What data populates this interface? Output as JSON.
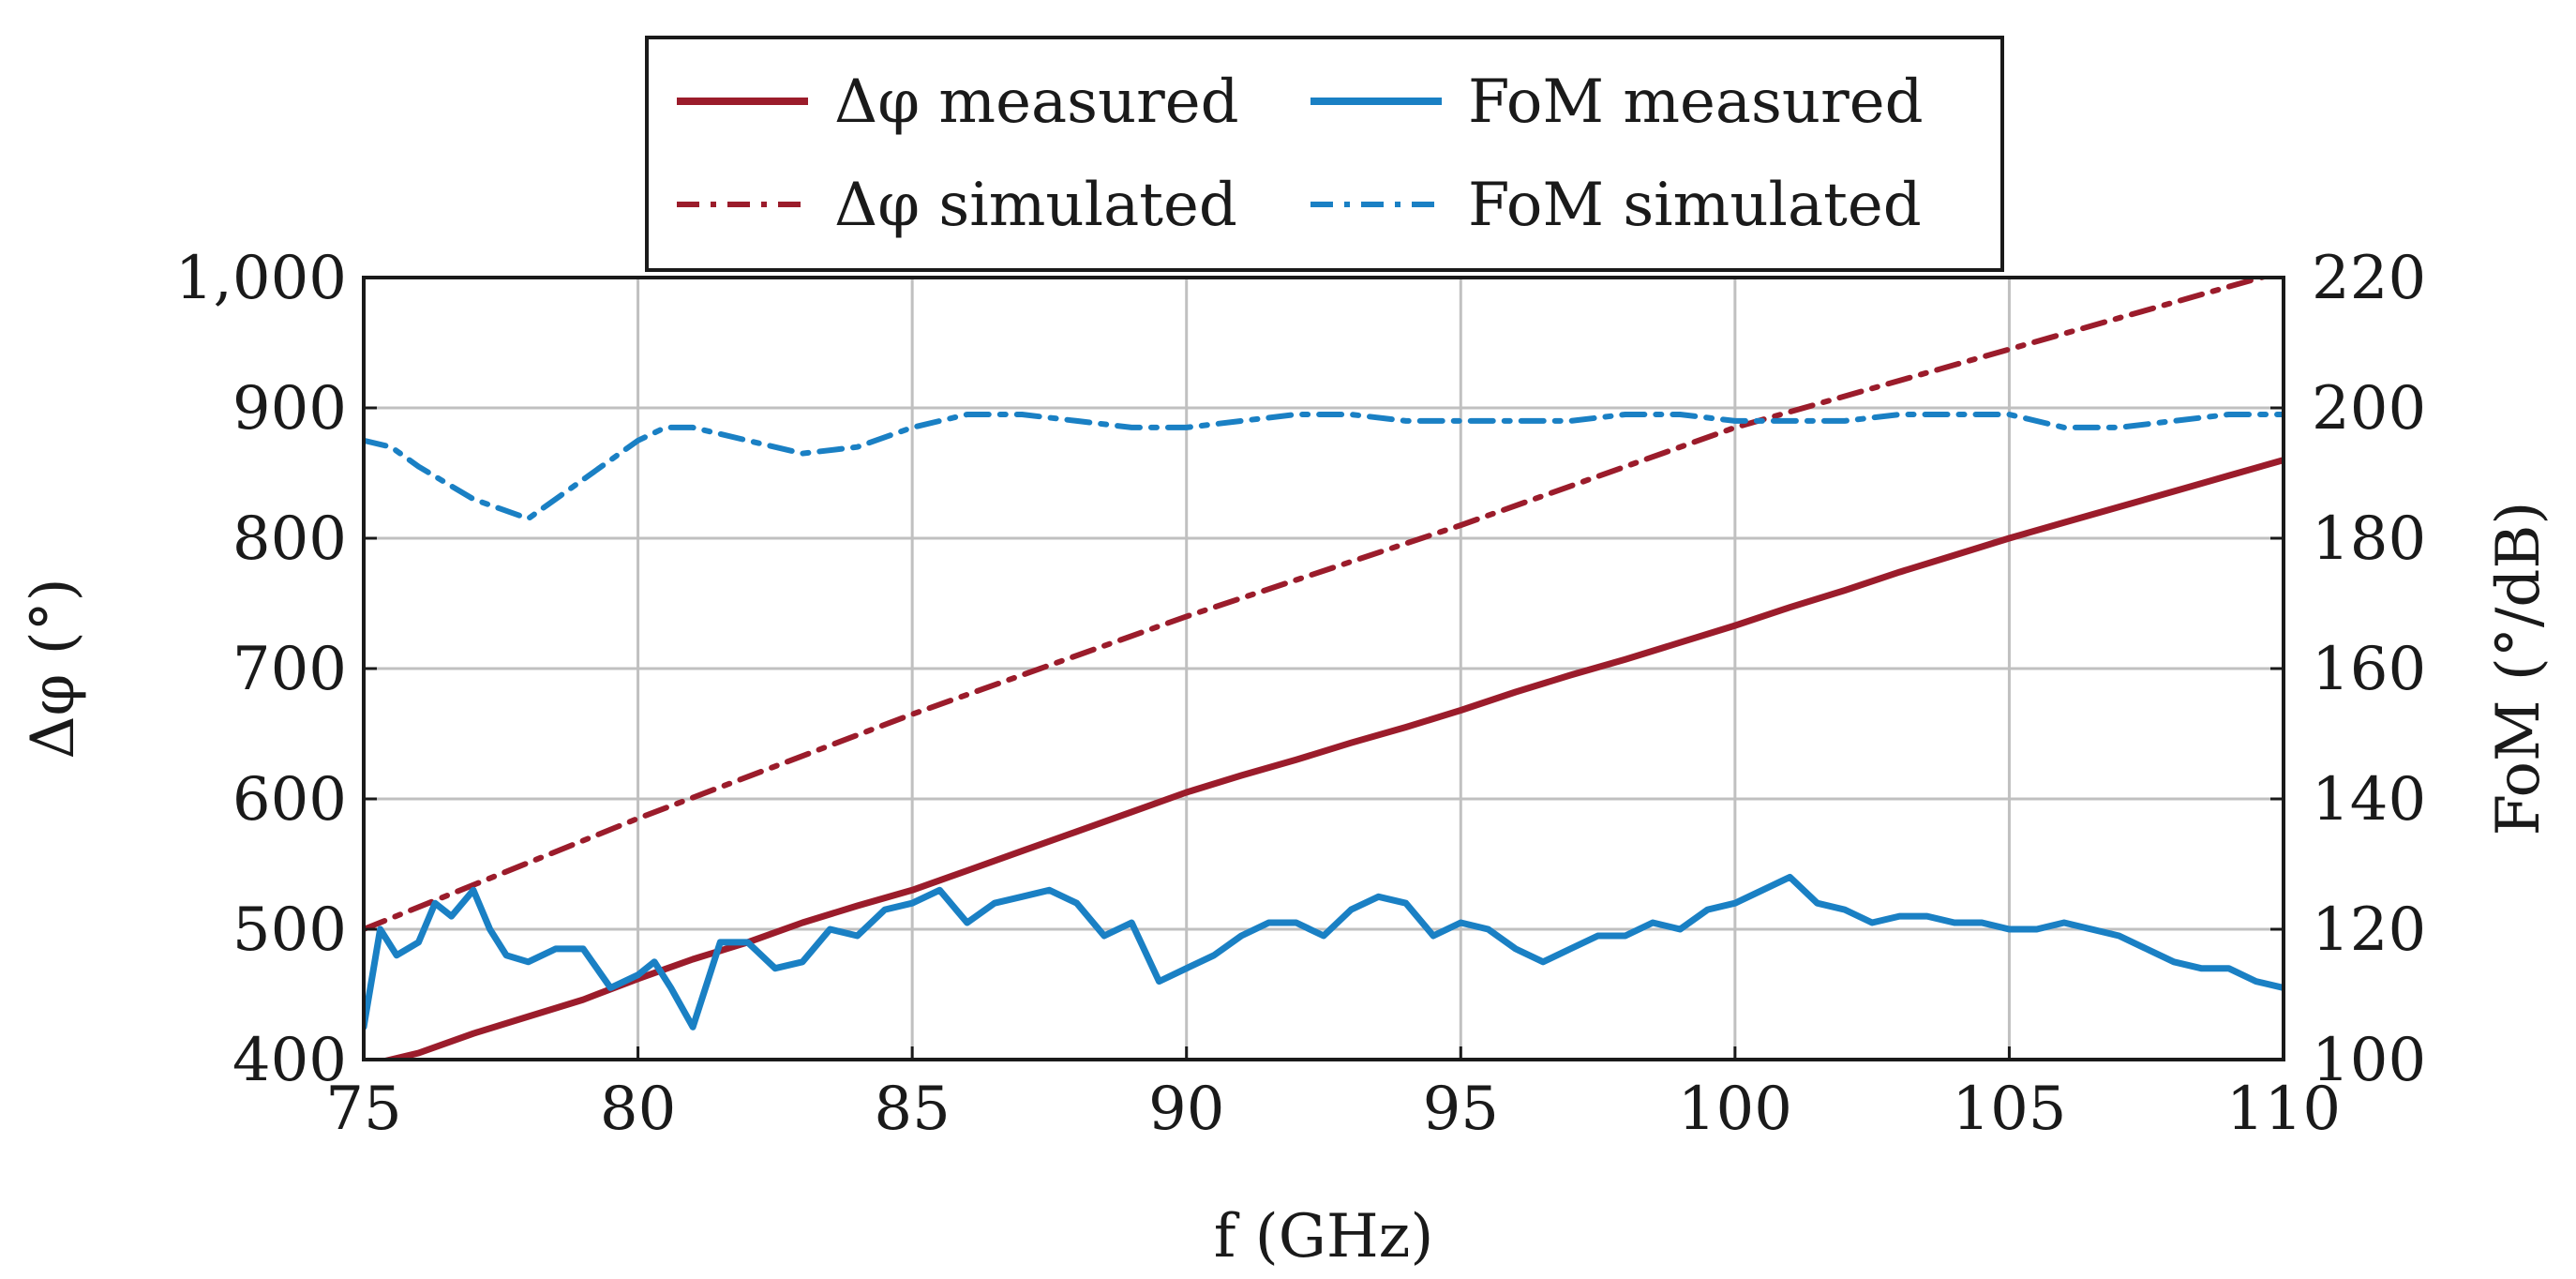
{
  "chart_data": {
    "type": "line",
    "xlabel": "f (GHz)",
    "ylabel_left": "Δφ (°)",
    "ylabel_right": "FoM (°/dB)",
    "xlim": [
      75,
      110
    ],
    "ylim_left": [
      400,
      1000
    ],
    "ylim_right": [
      100,
      220
    ],
    "grid": true,
    "legend_position": "top-center",
    "x_ticks": [
      75,
      80,
      85,
      90,
      95,
      100,
      105,
      110
    ],
    "x_tick_labels": [
      "75",
      "80",
      "85",
      "90",
      "95",
      "100",
      "105",
      "110"
    ],
    "y_left_ticks": [
      400,
      500,
      600,
      700,
      800,
      900,
      1000
    ],
    "y_left_tick_labels": [
      "400",
      "500",
      "600",
      "700",
      "800",
      "900",
      "1,000"
    ],
    "y_right_ticks": [
      100,
      120,
      140,
      160,
      180,
      200,
      220
    ],
    "y_right_tick_labels": [
      "100",
      "120",
      "140",
      "160",
      "180",
      "200",
      "220"
    ],
    "series": [
      {
        "name": "Δφ measured",
        "axis": "left",
        "color": "#9b1c2b",
        "style": "solid",
        "x": [
          75,
          76,
          77,
          78,
          79,
          80,
          81,
          82,
          83,
          84,
          85,
          86,
          87,
          88,
          89,
          90,
          91,
          92,
          93,
          94,
          95,
          96,
          97,
          98,
          99,
          100,
          101,
          102,
          103,
          104,
          105,
          106,
          107,
          108,
          109,
          110
        ],
        "values": [
          395,
          405,
          420,
          433,
          446,
          462,
          477,
          490,
          505,
          518,
          530,
          545,
          560,
          575,
          590,
          605,
          618,
          630,
          643,
          655,
          668,
          682,
          695,
          707,
          720,
          733,
          747,
          760,
          774,
          787,
          800,
          812,
          824,
          836,
          848,
          860
        ]
      },
      {
        "name": "Δφ simulated",
        "axis": "left",
        "color": "#9b1c2b",
        "style": "dashdot",
        "x": [
          75,
          80,
          85,
          90,
          95,
          100,
          105,
          110
        ],
        "values": [
          500,
          585,
          665,
          740,
          810,
          885,
          945,
          1005
        ]
      },
      {
        "name": "FoM measured",
        "axis": "right",
        "color": "#1a80c4",
        "style": "solid",
        "x": [
          75,
          75.3,
          75.6,
          76,
          76.3,
          76.6,
          77,
          77.3,
          77.6,
          78,
          78.5,
          79,
          79.5,
          80,
          80.3,
          80.6,
          81,
          81.5,
          82,
          82.5,
          83,
          83.5,
          84,
          84.5,
          85,
          85.5,
          86,
          86.5,
          87,
          87.5,
          88,
          88.5,
          89,
          89.5,
          90,
          90.5,
          91,
          91.5,
          92,
          92.5,
          93,
          93.5,
          94,
          94.5,
          95,
          95.5,
          96,
          96.5,
          97,
          97.5,
          98,
          98.5,
          99,
          99.5,
          100,
          100.5,
          101,
          101.5,
          102,
          102.5,
          103,
          103.5,
          104,
          104.5,
          105,
          105.5,
          106,
          106.5,
          107,
          107.5,
          108,
          108.5,
          109,
          109.5,
          110
        ],
        "values": [
          105,
          120,
          116,
          118,
          124,
          122,
          126,
          120,
          116,
          115,
          117,
          117,
          111,
          113,
          115,
          111,
          105,
          118,
          118,
          114,
          115,
          120,
          119,
          123,
          124,
          126,
          121,
          124,
          125,
          126,
          124,
          119,
          121,
          112,
          114,
          116,
          119,
          121,
          121,
          119,
          123,
          125,
          124,
          119,
          121,
          120,
          117,
          115,
          117,
          119,
          119,
          121,
          120,
          123,
          124,
          126,
          128,
          124,
          123,
          121,
          122,
          122,
          121,
          121,
          120,
          120,
          121,
          120,
          119,
          117,
          115,
          114,
          114,
          112,
          111
        ]
      },
      {
        "name": "FoM simulated",
        "axis": "right",
        "color": "#1a80c4",
        "style": "dashdot",
        "x": [
          75,
          75.5,
          76,
          77,
          78,
          79,
          80,
          80.5,
          81,
          82,
          83,
          84,
          85,
          86,
          87,
          88,
          89,
          90,
          91,
          92,
          93,
          94,
          95,
          96,
          97,
          98,
          99,
          100,
          101,
          102,
          103,
          104,
          105,
          106,
          107,
          108,
          109,
          110
        ],
        "values": [
          195,
          194,
          191,
          186,
          183,
          189,
          195,
          197,
          197,
          195,
          193,
          194,
          197,
          199,
          199,
          198,
          197,
          197,
          198,
          199,
          199,
          198,
          198,
          198,
          198,
          199,
          199,
          198,
          198,
          198,
          199,
          199,
          199,
          197,
          197,
          198,
          199,
          199
        ]
      }
    ]
  },
  "legend": {
    "items": [
      "Δφ measured",
      "FoM measured",
      "Δφ simulated",
      "FoM simulated"
    ]
  }
}
